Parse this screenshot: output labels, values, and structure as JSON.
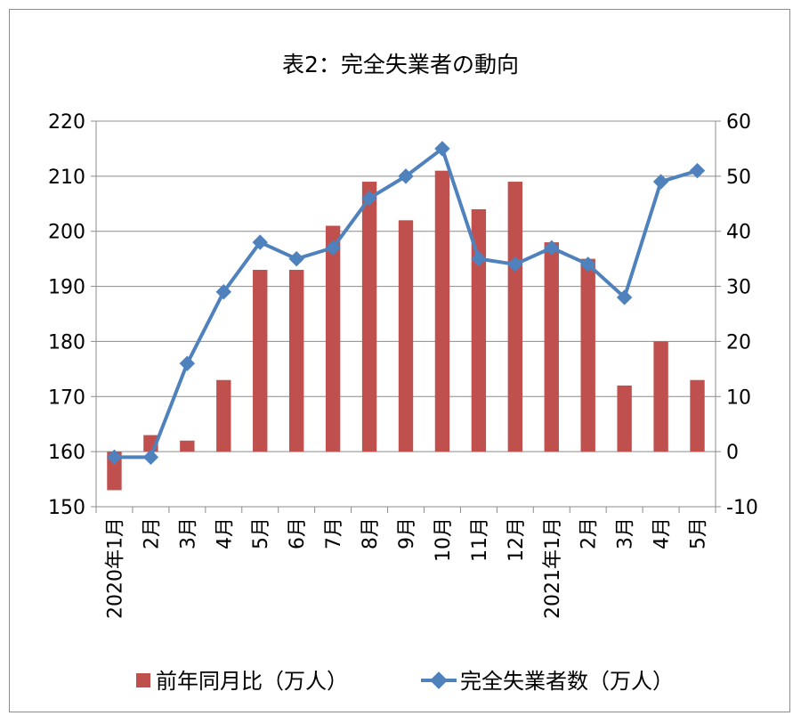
{
  "chart_data": {
    "type": "bar+line",
    "title": "表2：完全失業者の動向",
    "categories": [
      "2020年1月",
      "2月",
      "3月",
      "4月",
      "5月",
      "6月",
      "7月",
      "8月",
      "9月",
      "10月",
      "11月",
      "12月",
      "2021年1月",
      "2月",
      "3月",
      "4月",
      "5月"
    ],
    "series": [
      {
        "name": "前年同月比（万人）",
        "type": "bar",
        "axis": "right",
        "color": "#c0504d",
        "values": [
          -7,
          3,
          2,
          13,
          33,
          33,
          41,
          49,
          42,
          51,
          44,
          49,
          38,
          35,
          12,
          20,
          13
        ]
      },
      {
        "name": "完全失業者数（万人）",
        "type": "line",
        "axis": "left",
        "color": "#4f81bd",
        "values": [
          159,
          159,
          176,
          189,
          198,
          195,
          197,
          206,
          210,
          215,
          195,
          194,
          197,
          194,
          188,
          209,
          211
        ]
      }
    ],
    "y_left": {
      "min": 150,
      "max": 220,
      "ticks": [
        "150",
        "160",
        "170",
        "180",
        "190",
        "200",
        "210",
        "220"
      ]
    },
    "y_right": {
      "min": -10,
      "max": 60,
      "ticks": [
        "-10",
        "0",
        "10",
        "20",
        "30",
        "40",
        "50",
        "60"
      ]
    },
    "grid": true,
    "legend_position": "bottom"
  }
}
